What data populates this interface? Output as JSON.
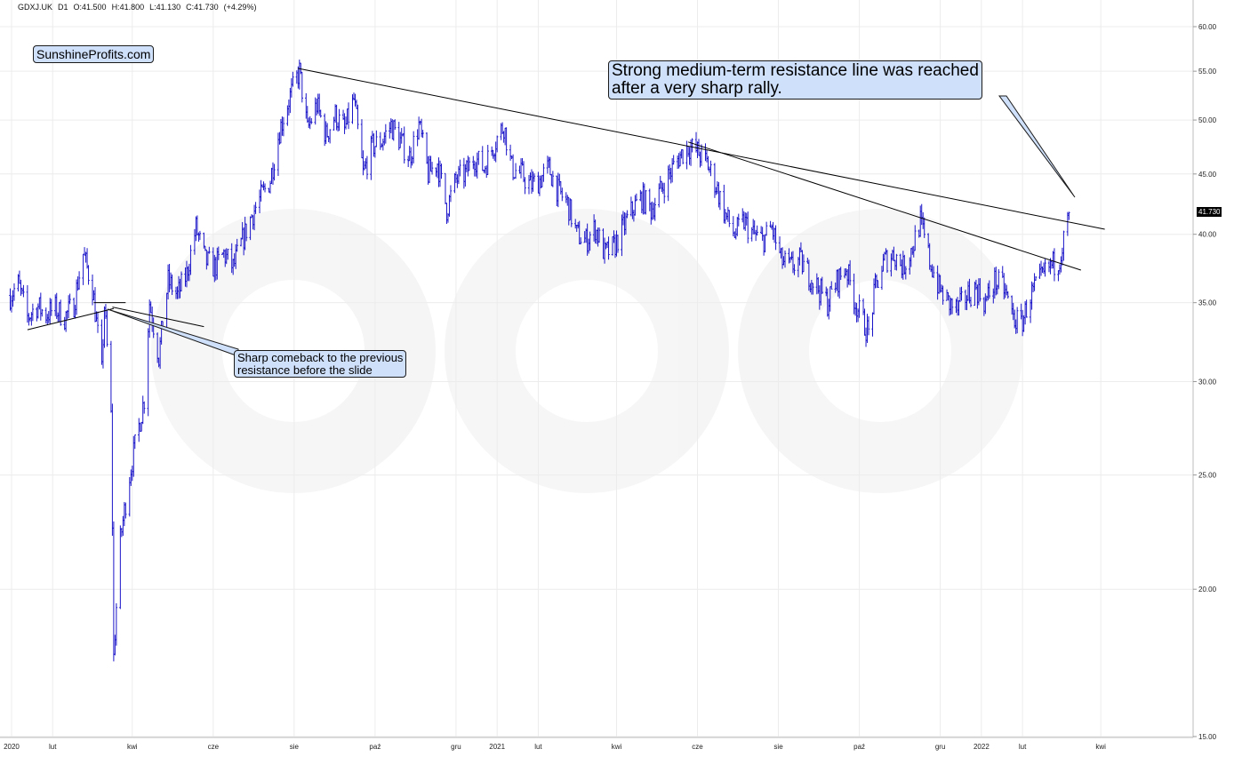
{
  "header": {
    "symbol": "GDXJ.UK",
    "timeframe": "D1",
    "open": "O:41.500",
    "high": "H:41.800",
    "low": "L:41.130",
    "close": "C:41.730",
    "change": "(+4.29%)"
  },
  "brand": {
    "label": "SunshineProfits.com"
  },
  "annotations": {
    "big": {
      "line1": "Strong medium-term resistance line was reached",
      "line2": "after a very sharp rally."
    },
    "small": {
      "line1": "Sharp comeback to the previous",
      "line2": "resistance before the slide"
    }
  },
  "last_price_label": "41.730",
  "colors": {
    "bars": "#1a14c8",
    "callout_fill": "#cfe0fb",
    "grid": "#ececec",
    "trendline": "#000000"
  },
  "chart_data": {
    "type": "ohlc",
    "title": "",
    "xlabel": "",
    "ylabel": "",
    "yscale": "log",
    "ylim": [
      15,
      62
    ],
    "y_ticks": [
      "60.00",
      "55.00",
      "50.00",
      "45.00",
      "40.00",
      "35.00",
      "30.00",
      "25.00",
      "20.00",
      "15.00"
    ],
    "x_ticks": [
      "2020",
      "lut",
      "kwi",
      "cze",
      "sie",
      "paź",
      "gru",
      "2021",
      "lut",
      "kwi",
      "cze",
      "sie",
      "paź",
      "gru",
      "2022",
      "lut",
      "kwi"
    ],
    "x_range": [
      "2019-12-30",
      "2022-04-25"
    ],
    "grid": true,
    "close_path": [
      [
        "2019-12-31",
        35.5
      ],
      [
        "2020-01-06",
        36.3
      ],
      [
        "2020-01-13",
        34.0
      ],
      [
        "2020-01-20",
        34.8
      ],
      [
        "2020-01-27",
        34.2
      ],
      [
        "2020-02-03",
        34.6
      ],
      [
        "2020-02-10",
        34.0
      ],
      [
        "2020-02-17",
        34.9
      ],
      [
        "2020-02-24",
        38.5
      ],
      [
        "2020-03-02",
        36.0
      ],
      [
        "2020-03-09",
        30.5
      ],
      [
        "2020-03-11",
        34.8
      ],
      [
        "2020-03-16",
        28.0
      ],
      [
        "2020-03-18",
        17.5
      ],
      [
        "2020-03-23",
        22.0
      ],
      [
        "2020-03-30",
        25.0
      ],
      [
        "2020-04-06",
        27.5
      ],
      [
        "2020-04-10",
        29.0
      ],
      [
        "2020-04-14",
        35.0
      ],
      [
        "2020-04-21",
        31.5
      ],
      [
        "2020-04-28",
        36.5
      ],
      [
        "2020-05-05",
        35.5
      ],
      [
        "2020-05-12",
        37.0
      ],
      [
        "2020-05-19",
        40.5
      ],
      [
        "2020-05-26",
        38.0
      ],
      [
        "2020-06-02",
        37.5
      ],
      [
        "2020-06-09",
        38.5
      ],
      [
        "2020-06-16",
        37.5
      ],
      [
        "2020-06-23",
        39.5
      ],
      [
        "2020-06-30",
        41.5
      ],
      [
        "2020-07-07",
        43.0
      ],
      [
        "2020-07-14",
        44.5
      ],
      [
        "2020-07-21",
        49.0
      ],
      [
        "2020-07-28",
        52.0
      ],
      [
        "2020-08-05",
        55.0
      ],
      [
        "2020-08-11",
        49.0
      ],
      [
        "2020-08-18",
        51.5
      ],
      [
        "2020-08-25",
        48.5
      ],
      [
        "2020-09-01",
        50.5
      ],
      [
        "2020-09-08",
        49.0
      ],
      [
        "2020-09-15",
        52.0
      ],
      [
        "2020-09-22",
        45.0
      ],
      [
        "2020-09-29",
        47.5
      ],
      [
        "2020-10-06",
        48.0
      ],
      [
        "2020-10-13",
        49.5
      ],
      [
        "2020-10-20",
        48.0
      ],
      [
        "2020-10-27",
        46.5
      ],
      [
        "2020-11-03",
        49.5
      ],
      [
        "2020-11-10",
        45.0
      ],
      [
        "2020-11-17",
        46.0
      ],
      [
        "2020-11-24",
        42.0
      ],
      [
        "2020-12-01",
        44.5
      ],
      [
        "2020-12-08",
        45.0
      ],
      [
        "2020-12-15",
        46.5
      ],
      [
        "2020-12-22",
        45.5
      ],
      [
        "2020-12-29",
        47.5
      ],
      [
        "2021-01-06",
        49.5
      ],
      [
        "2021-01-12",
        45.5
      ],
      [
        "2021-01-19",
        45.0
      ],
      [
        "2021-01-26",
        44.0
      ],
      [
        "2021-02-02",
        44.5
      ],
      [
        "2021-02-09",
        45.5
      ],
      [
        "2021-02-16",
        43.5
      ],
      [
        "2021-02-23",
        42.5
      ],
      [
        "2021-03-02",
        40.0
      ],
      [
        "2021-03-09",
        39.5
      ],
      [
        "2021-03-16",
        40.5
      ],
      [
        "2021-03-23",
        38.5
      ],
      [
        "2021-03-30",
        39.0
      ],
      [
        "2021-04-06",
        40.5
      ],
      [
        "2021-04-13",
        42.0
      ],
      [
        "2021-04-20",
        43.0
      ],
      [
        "2021-04-27",
        42.0
      ],
      [
        "2021-05-04",
        43.5
      ],
      [
        "2021-05-11",
        45.0
      ],
      [
        "2021-05-18",
        46.5
      ],
      [
        "2021-05-25",
        47.5
      ],
      [
        "2021-06-01",
        47.0
      ],
      [
        "2021-06-08",
        46.0
      ],
      [
        "2021-06-15",
        44.0
      ],
      [
        "2021-06-22",
        41.5
      ],
      [
        "2021-06-29",
        40.0
      ],
      [
        "2021-07-06",
        41.0
      ],
      [
        "2021-07-13",
        40.0
      ],
      [
        "2021-07-20",
        39.5
      ],
      [
        "2021-07-27",
        40.5
      ],
      [
        "2021-08-03",
        38.0
      ],
      [
        "2021-08-10",
        37.5
      ],
      [
        "2021-08-17",
        38.0
      ],
      [
        "2021-08-24",
        37.0
      ],
      [
        "2021-08-31",
        36.0
      ],
      [
        "2021-09-07",
        35.0
      ],
      [
        "2021-09-14",
        36.5
      ],
      [
        "2021-09-21",
        37.5
      ],
      [
        "2021-09-28",
        35.0
      ],
      [
        "2021-10-05",
        33.5
      ],
      [
        "2021-10-08",
        33.0
      ],
      [
        "2021-10-13",
        36.0
      ],
      [
        "2021-10-20",
        38.0
      ],
      [
        "2021-10-27",
        38.5
      ],
      [
        "2021-11-03",
        37.5
      ],
      [
        "2021-11-10",
        39.0
      ],
      [
        "2021-11-16",
        41.0
      ],
      [
        "2021-11-23",
        38.0
      ],
      [
        "2021-11-30",
        36.0
      ],
      [
        "2021-12-07",
        35.0
      ],
      [
        "2021-12-14",
        34.5
      ],
      [
        "2021-12-21",
        35.5
      ],
      [
        "2021-12-28",
        36.0
      ],
      [
        "2022-01-04",
        35.0
      ],
      [
        "2022-01-11",
        36.5
      ],
      [
        "2022-01-18",
        36.0
      ],
      [
        "2022-01-25",
        34.0
      ],
      [
        "2022-01-31",
        33.5
      ],
      [
        "2022-02-07",
        35.5
      ],
      [
        "2022-02-14",
        36.5
      ],
      [
        "2022-02-21",
        37.5
      ],
      [
        "2022-02-28",
        38.0
      ],
      [
        "2022-03-04",
        39.5
      ],
      [
        "2022-03-08",
        41.73
      ]
    ],
    "trendlines": [
      {
        "from": [
          "2020-08-04",
          55.3
        ],
        "to": [
          "2022-04-04",
          40.4
        ]
      },
      {
        "from": [
          "2021-05-25",
          47.9
        ],
        "to": [
          "2022-03-17",
          37.3
        ]
      },
      {
        "from": [
          "2020-01-13",
          33.2
        ],
        "to": [
          "2020-03-18",
          34.6
        ]
      },
      {
        "from": [
          "2020-03-03",
          35.0
        ],
        "to": [
          "2020-03-27",
          35.0
        ]
      },
      {
        "from": [
          "2020-03-17",
          34.7
        ],
        "to": [
          "2020-05-25",
          33.4
        ]
      }
    ],
    "last_value": 41.73
  }
}
